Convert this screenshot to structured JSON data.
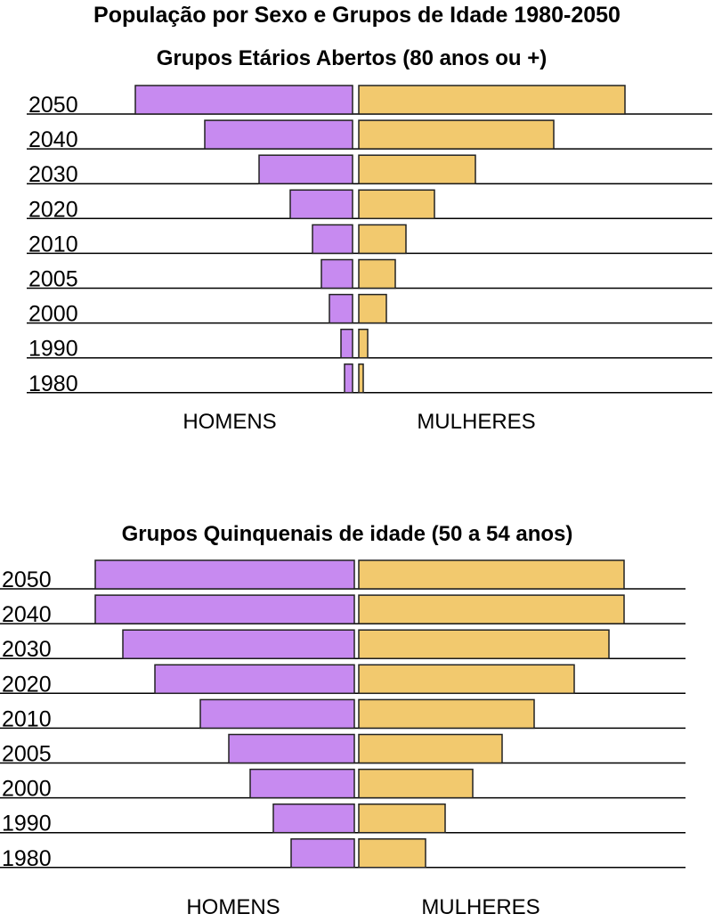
{
  "title": "População por Sexo e Grupos de Idade 1980-2050",
  "chart_data": [
    {
      "type": "bar",
      "subtitle": "Grupos Etários Abertos (80 anos ou +)",
      "categories": [
        "2050",
        "2040",
        "2030",
        "2020",
        "2010",
        "2005",
        "2000",
        "1990",
        "1980"
      ],
      "series": [
        {
          "name": "HOMENS",
          "color": "#c78af0",
          "values": [
            244,
            166,
            105,
            70,
            45,
            35,
            26,
            13,
            9
          ]
        },
        {
          "name": "MULHERES",
          "color": "#f2c96e",
          "values": [
            299,
            219,
            131,
            85,
            53,
            41,
            31,
            10,
            5
          ]
        }
      ],
      "xlim": [
        0,
        300
      ]
    },
    {
      "type": "bar",
      "subtitle": "Grupos Quinquenais de idade (50 a 54 anos)",
      "categories": [
        "2050",
        "2040",
        "2030",
        "2020",
        "2010",
        "2005",
        "2000",
        "1990",
        "1980"
      ],
      "series": [
        {
          "name": "HOMENS",
          "color": "#c78af0",
          "values": [
            291,
            291,
            260,
            224,
            173,
            141,
            117,
            91,
            71
          ]
        },
        {
          "name": "MULHERES",
          "color": "#f2c96e",
          "values": [
            298,
            298,
            281,
            242,
            197,
            161,
            128,
            97,
            75
          ]
        }
      ],
      "xlim": [
        0,
        300
      ]
    }
  ]
}
